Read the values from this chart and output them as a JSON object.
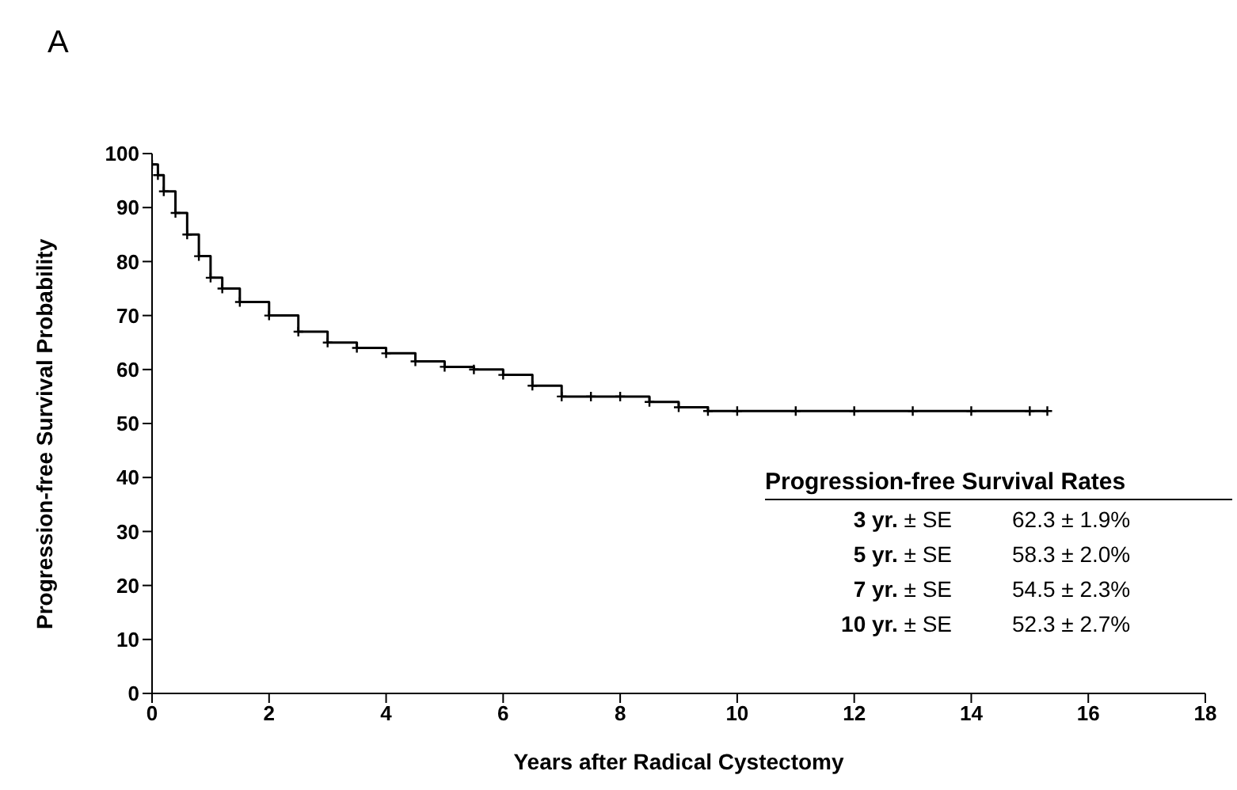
{
  "chart_data": {
    "type": "step",
    "xlabel": "Years after Radical Cystectomy",
    "ylabel": "Progression-free Survival Probability",
    "x": [
      0,
      0.1,
      0.2,
      0.4,
      0.6,
      0.8,
      1.0,
      1.2,
      1.5,
      2,
      2.5,
      3,
      3.5,
      4,
      4.5,
      5,
      5.5,
      6,
      6.5,
      7,
      7.5,
      8,
      8.5,
      9,
      9.5,
      10,
      11,
      12,
      13,
      14,
      15,
      15.3
    ],
    "series": [
      {
        "color": "#000000",
        "values": [
          98,
          96,
          93,
          89,
          85,
          81,
          77,
          75,
          72.5,
          70,
          67,
          65,
          64,
          63,
          61.5,
          60.5,
          60,
          59,
          57,
          55,
          55,
          55,
          54,
          53,
          52.3,
          52.3,
          52.3,
          52.3,
          52.3,
          52.3,
          52.3,
          52.3
        ]
      }
    ],
    "xlim": [
      0,
      18
    ],
    "xticks": [
      0,
      2,
      4,
      6,
      8,
      10,
      12,
      14,
      16,
      18
    ],
    "ylim": [
      0,
      100
    ],
    "yticks": [
      0,
      10,
      20,
      30,
      40,
      50,
      60,
      70,
      80,
      90,
      100
    ],
    "grid": false,
    "legend": false,
    "marker": "cross",
    "line_style": "solid",
    "annotations": [
      "A",
      "Progression-free Survival Rates",
      "3 yr. ± SE",
      "62.3 ± 1.9%",
      "5 yr. ± SE",
      "58.3 ± 2.0%",
      "7 yr. ± SE",
      "54.5 ± 2.3%",
      "10 yr. ± SE",
      "52.3 ± 2.7%"
    ]
  }
}
